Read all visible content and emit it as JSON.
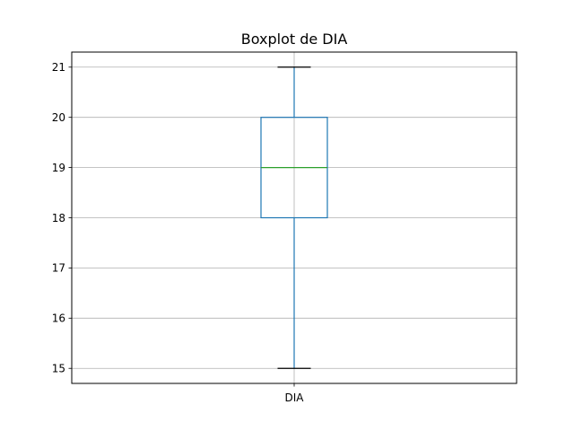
{
  "chart_data": {
    "type": "boxplot",
    "title": "Boxplot de DIA",
    "xlabel": "",
    "ylabel": "",
    "categories": [
      "DIA"
    ],
    "boxes": [
      {
        "category": "DIA",
        "whisker_low": 15,
        "q1": 18,
        "median": 19,
        "q3": 20,
        "whisker_high": 21
      }
    ],
    "ylim": [
      14.7,
      21.3
    ],
    "yticks": [
      15,
      16,
      17,
      18,
      19,
      20,
      21
    ],
    "grid": true,
    "colors": {
      "box": "#1f77b4",
      "median": "#2ca02c",
      "whisker": "#1f77b4",
      "cap": "#000000",
      "grid": "#b0b0b0"
    }
  }
}
